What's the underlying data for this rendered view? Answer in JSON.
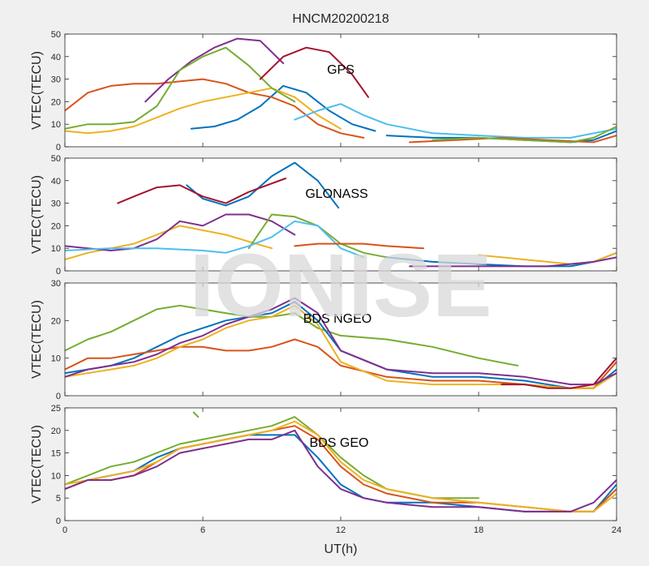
{
  "figure": {
    "title": "HNCM20200218",
    "xlabel": "UT(h)",
    "watermark": "IONISE"
  },
  "chart_data": [
    {
      "type": "line",
      "title": "HNCM20200218",
      "annotation": "GPS",
      "xlabel": "",
      "ylabel": "VTEC(TECU)",
      "xlim": [
        0,
        24
      ],
      "ylim": [
        0,
        50
      ],
      "xticks": [
        0,
        6,
        12,
        18,
        24
      ],
      "yticks": [
        0,
        10,
        20,
        30,
        40,
        50
      ],
      "grid": false,
      "series": [
        {
          "color": "#0072BD",
          "x": [
            5.5,
            6.5,
            7.5,
            8.5,
            9.5,
            10.5,
            11.5,
            12.5,
            13.5
          ],
          "y": [
            8,
            9,
            12,
            18,
            27,
            24,
            16,
            10,
            7
          ]
        },
        {
          "color": "#D95319",
          "x": [
            0,
            1,
            2,
            3,
            4,
            5,
            6,
            7,
            8,
            9,
            10,
            11,
            12,
            13
          ],
          "y": [
            16,
            24,
            27,
            28,
            28,
            29,
            30,
            28,
            24,
            22,
            18,
            10,
            6,
            4
          ]
        },
        {
          "color": "#EDB120",
          "x": [
            0,
            1,
            2,
            3,
            4,
            5,
            6,
            7,
            8,
            9,
            10,
            11,
            12
          ],
          "y": [
            7,
            6,
            7,
            9,
            13,
            17,
            20,
            22,
            24,
            26,
            22,
            14,
            8
          ]
        },
        {
          "color": "#7E2F8E",
          "x": [
            3.5,
            4.5,
            5.5,
            6.5,
            7.5,
            8.5,
            9.5
          ],
          "y": [
            20,
            30,
            38,
            44,
            48,
            47,
            37
          ]
        },
        {
          "color": "#77AC30",
          "x": [
            0,
            1,
            2,
            3,
            4,
            5,
            6,
            7,
            8,
            9,
            10
          ],
          "y": [
            8,
            10,
            10,
            11,
            18,
            34,
            40,
            44,
            36,
            26,
            20
          ]
        },
        {
          "color": "#4DBEEE",
          "x": [
            10,
            11,
            12,
            13,
            14,
            16,
            18,
            20,
            22,
            24
          ],
          "y": [
            12,
            16,
            19,
            14,
            10,
            6,
            5,
            4,
            4,
            8
          ]
        },
        {
          "color": "#A2142F",
          "x": [
            8.5,
            9.5,
            10.5,
            11.5,
            12.5,
            13.2
          ],
          "y": [
            30,
            40,
            44,
            42,
            32,
            22
          ]
        },
        {
          "color": "#0072BD",
          "x": [
            14,
            16,
            18,
            20,
            22,
            23,
            24
          ],
          "y": [
            5,
            4,
            4,
            3,
            2,
            3,
            7
          ]
        },
        {
          "color": "#D95319",
          "x": [
            15,
            17,
            19,
            21,
            23,
            24
          ],
          "y": [
            2,
            3,
            4,
            3,
            2,
            5
          ]
        },
        {
          "color": "#77AC30",
          "x": [
            16,
            18,
            20,
            22,
            23,
            24
          ],
          "y": [
            3,
            4,
            3,
            2,
            4,
            9
          ]
        }
      ]
    },
    {
      "type": "line",
      "annotation": "GLONASS",
      "xlabel": "",
      "ylabel": "VTEC(TECU)",
      "xlim": [
        0,
        24
      ],
      "ylim": [
        0,
        50
      ],
      "xticks": [
        0,
        6,
        12,
        18,
        24
      ],
      "yticks": [
        0,
        10,
        20,
        30,
        40,
        50
      ],
      "grid": false,
      "series": [
        {
          "color": "#0072BD",
          "x": [
            5.3,
            6,
            7,
            8,
            9,
            10,
            11,
            11.9
          ],
          "y": [
            38,
            32,
            29,
            33,
            42,
            48,
            40,
            28
          ]
        },
        {
          "color": "#A2142F",
          "x": [
            2.3,
            3,
            4,
            5,
            6,
            7,
            8,
            9.6
          ],
          "y": [
            30,
            33,
            37,
            38,
            33,
            30,
            35,
            41
          ]
        },
        {
          "color": "#EDB120",
          "x": [
            0,
            1,
            2,
            3,
            4,
            5,
            6,
            7,
            8,
            9
          ],
          "y": [
            5,
            8,
            10,
            12,
            16,
            20,
            18,
            16,
            13,
            10
          ]
        },
        {
          "color": "#7E2F8E",
          "x": [
            0,
            1,
            2,
            3,
            4,
            5,
            6,
            7,
            8,
            9,
            10
          ],
          "y": [
            11,
            10,
            9,
            10,
            14,
            22,
            20,
            25,
            25,
            22,
            16
          ]
        },
        {
          "color": "#77AC30",
          "x": [
            8,
            9,
            10,
            11,
            12,
            13,
            14
          ],
          "y": [
            10,
            25,
            24,
            20,
            12,
            8,
            6
          ]
        },
        {
          "color": "#4DBEEE",
          "x": [
            0,
            2,
            4,
            6,
            7,
            8,
            9,
            10,
            11,
            12,
            13
          ],
          "y": [
            9,
            10,
            10,
            9,
            8,
            11,
            15,
            22,
            20,
            10,
            6
          ]
        },
        {
          "color": "#D95319",
          "x": [
            10,
            11,
            12,
            13,
            14,
            15.6
          ],
          "y": [
            11,
            12,
            12,
            12,
            11,
            10
          ]
        },
        {
          "color": "#0072BD",
          "x": [
            14,
            16,
            18,
            20,
            22,
            23,
            24
          ],
          "y": [
            6,
            4,
            3,
            2,
            2,
            4,
            8
          ]
        },
        {
          "color": "#EDB120",
          "x": [
            18,
            19,
            20,
            21,
            22,
            23,
            24
          ],
          "y": [
            7,
            6,
            5,
            4,
            3,
            4,
            8
          ]
        },
        {
          "color": "#7E2F8E",
          "x": [
            15,
            17,
            19,
            21,
            23,
            24
          ],
          "y": [
            2,
            2,
            2,
            2,
            4,
            6
          ]
        }
      ]
    },
    {
      "type": "line",
      "annotation": "BDS NGEO",
      "xlabel": "",
      "ylabel": "VTEC(TECU)",
      "xlim": [
        0,
        24
      ],
      "ylim": [
        0,
        30
      ],
      "xticks": [
        0,
        6,
        12,
        18,
        24
      ],
      "yticks": [
        0,
        10,
        20,
        30
      ],
      "grid": false,
      "series": [
        {
          "color": "#77AC30",
          "x": [
            0,
            1,
            2,
            3,
            4,
            5,
            6,
            7,
            8,
            9,
            10,
            11,
            12,
            14,
            16,
            18,
            19.7
          ],
          "y": [
            12,
            15,
            17,
            20,
            23,
            24,
            23,
            22,
            21,
            21,
            22,
            18,
            16,
            15,
            13,
            10,
            8
          ]
        },
        {
          "color": "#0072BD",
          "x": [
            0,
            1,
            2,
            3,
            4,
            5,
            6,
            7,
            8,
            9,
            10,
            11,
            12,
            14,
            16,
            18,
            20,
            22,
            23,
            24
          ],
          "y": [
            6,
            7,
            8,
            10,
            13,
            16,
            18,
            20,
            21,
            22,
            25,
            20,
            12,
            7,
            5,
            5,
            4,
            2,
            2,
            7
          ]
        },
        {
          "color": "#D95319",
          "x": [
            0,
            1,
            2,
            3,
            4,
            5,
            6,
            7,
            8,
            9,
            10,
            11,
            12,
            14,
            16,
            18,
            20,
            22,
            23,
            24
          ],
          "y": [
            7,
            10,
            10,
            11,
            12,
            13,
            13,
            12,
            12,
            13,
            15,
            13,
            8,
            5,
            4,
            4,
            3,
            2,
            2,
            9
          ]
        },
        {
          "color": "#EDB120",
          "x": [
            0,
            1,
            2,
            3,
            4,
            5,
            6,
            7,
            8,
            9,
            10,
            11,
            12,
            14,
            16,
            18,
            20,
            22,
            23,
            24
          ],
          "y": [
            5,
            6,
            7,
            8,
            10,
            13,
            15,
            18,
            20,
            21,
            24,
            19,
            9,
            4,
            3,
            3,
            3,
            2,
            2,
            6
          ]
        },
        {
          "color": "#7E2F8E",
          "x": [
            0,
            1,
            2,
            3,
            4,
            5,
            6,
            7,
            8,
            9,
            10,
            11,
            12,
            14,
            16,
            18,
            20,
            22,
            23,
            24
          ],
          "y": [
            5,
            7,
            8,
            9,
            11,
            14,
            16,
            19,
            21,
            23,
            26,
            22,
            12,
            7,
            6,
            6,
            5,
            3,
            3,
            6
          ]
        },
        {
          "color": "#A2142F",
          "x": [
            19,
            20,
            21,
            22,
            23,
            24
          ],
          "y": [
            3,
            3,
            2,
            2,
            3,
            10
          ]
        }
      ]
    },
    {
      "type": "line",
      "annotation": "BDS GEO",
      "xlabel": "UT(h)",
      "ylabel": "VTEC(TECU)",
      "xlim": [
        0,
        24
      ],
      "ylim": [
        0,
        25
      ],
      "xticks": [
        0,
        6,
        12,
        18,
        24
      ],
      "yticks": [
        0,
        5,
        10,
        15,
        20,
        25
      ],
      "grid": false,
      "series": [
        {
          "color": "#77AC30",
          "x": [
            0,
            1,
            1.5,
            2,
            3,
            4,
            5,
            6,
            7,
            8,
            9,
            10,
            11,
            12,
            13,
            14,
            15,
            16,
            17,
            18
          ],
          "y": [
            8,
            10,
            11,
            12,
            13,
            15,
            17,
            18,
            19,
            20,
            21,
            23,
            19,
            14,
            10,
            7,
            6,
            5,
            5,
            5
          ]
        },
        {
          "color": "#0072BD",
          "x": [
            0,
            1,
            2,
            3,
            4,
            5,
            6,
            7,
            8,
            9,
            10,
            11,
            12,
            13,
            14,
            16,
            18,
            20,
            22,
            23,
            24
          ],
          "y": [
            7,
            9,
            10,
            11,
            14,
            16,
            17,
            18,
            19,
            19,
            19,
            14,
            8,
            5,
            4,
            4,
            3,
            2,
            2,
            2,
            8
          ]
        },
        {
          "color": "#D95319",
          "x": [
            0,
            1,
            2,
            3,
            4,
            5,
            6,
            7,
            8,
            9,
            10,
            11,
            12,
            13,
            14,
            16,
            18,
            20,
            22,
            23,
            24
          ],
          "y": [
            7,
            9,
            9,
            10,
            13,
            16,
            17,
            18,
            19,
            20,
            21,
            18,
            12,
            8,
            6,
            4,
            4,
            3,
            2,
            2,
            7
          ]
        },
        {
          "color": "#EDB120",
          "x": [
            0,
            1,
            2,
            3,
            4,
            5,
            6,
            7,
            8,
            9,
            10,
            11,
            12,
            13,
            14,
            16,
            18,
            20,
            22,
            23,
            24
          ],
          "y": [
            8,
            9,
            10,
            11,
            13,
            16,
            17,
            18,
            19,
            20,
            22,
            19,
            13,
            9,
            7,
            5,
            4,
            3,
            2,
            2,
            6
          ]
        },
        {
          "color": "#7E2F8E",
          "x": [
            0,
            1,
            2,
            3,
            4,
            5,
            6,
            7,
            8,
            9,
            10,
            11,
            12,
            13,
            14,
            16,
            18,
            20,
            22,
            23,
            24
          ],
          "y": [
            7,
            9,
            9,
            10,
            12,
            15,
            16,
            17,
            18,
            18,
            20,
            12,
            7,
            5,
            4,
            3,
            3,
            2,
            2,
            4,
            9
          ]
        },
        {
          "color": "#77AC30",
          "x": [
            5.6,
            5.8
          ],
          "y": [
            24,
            23
          ]
        }
      ]
    }
  ]
}
